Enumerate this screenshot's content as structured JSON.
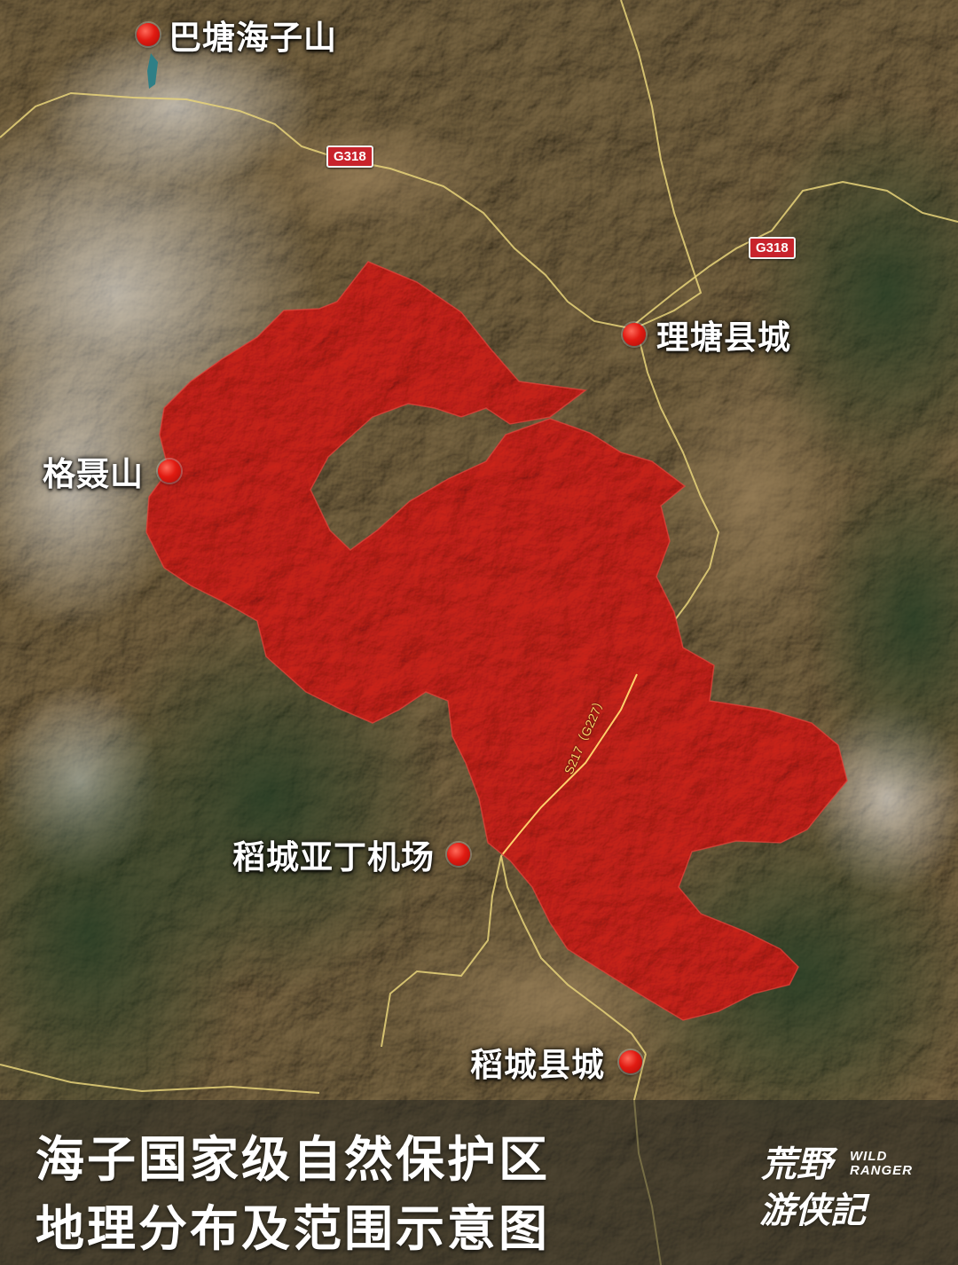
{
  "title": {
    "line1": "海子国家级自然保护区",
    "line2": "地理分布及范围示意图"
  },
  "places": [
    {
      "id": "batang-haizishan",
      "label": "巴塘海子山"
    },
    {
      "id": "litang",
      "label": "理塘县城"
    },
    {
      "id": "genieshan",
      "label": "格聂山"
    },
    {
      "id": "daocheng-airport",
      "label": "稻城亚丁机场"
    },
    {
      "id": "daocheng",
      "label": "稻城县城"
    }
  ],
  "roads": {
    "g318_a": "G318",
    "g318_b": "G318",
    "s217": "S217（G227）"
  },
  "logo": {
    "cn_1": "荒野",
    "cn_2": "游侠記",
    "en_1": "WILD",
    "en_2": "RANGER"
  },
  "colors": {
    "reserve_fill": "#d42a22",
    "marker": "#e11b12",
    "road": "#e8d37a"
  }
}
